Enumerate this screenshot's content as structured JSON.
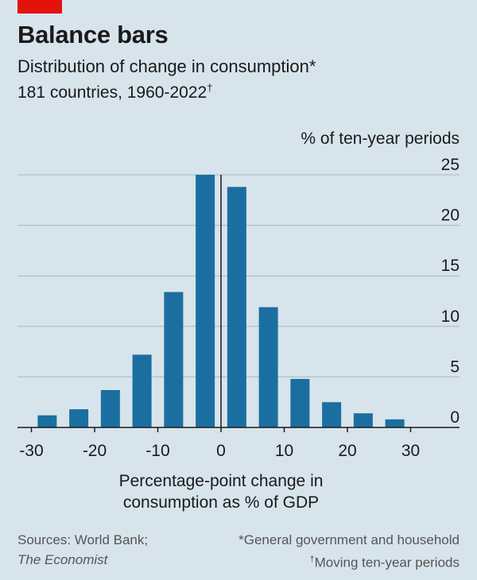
{
  "header": {
    "title": "Balance bars",
    "subtitle": "Distribution of change in consumption*",
    "subtitle2_text": "181 countries, 1960-2022",
    "subtitle2_mark": "†"
  },
  "colors": {
    "bar": "#1b6fa0",
    "brand_red": "#e3120b",
    "background": "#d7e4ec"
  },
  "chart_data": {
    "type": "bar",
    "ylabel": "% of ten-year periods",
    "xlabel": [
      "Percentage-point change in",
      "consumption as % of GDP"
    ],
    "xlim": [
      -33,
      33
    ],
    "ylim": [
      0,
      25
    ],
    "yticks": [
      0,
      5,
      10,
      15,
      20,
      25
    ],
    "xticks": [
      -30,
      -20,
      -10,
      0,
      10,
      20,
      30
    ],
    "bins": [
      {
        "x": -27.5,
        "value": 1.2
      },
      {
        "x": -22.5,
        "value": 1.8
      },
      {
        "x": -17.5,
        "value": 3.7
      },
      {
        "x": -12.5,
        "value": 7.2
      },
      {
        "x": -7.5,
        "value": 13.4
      },
      {
        "x": -2.5,
        "value": 25.0
      },
      {
        "x": 2.5,
        "value": 23.8
      },
      {
        "x": 7.5,
        "value": 11.9
      },
      {
        "x": 12.5,
        "value": 4.8
      },
      {
        "x": 17.5,
        "value": 2.5
      },
      {
        "x": 22.5,
        "value": 1.4
      },
      {
        "x": 27.5,
        "value": 0.8
      }
    ]
  },
  "footer": {
    "sources_line1": "Sources: World Bank;",
    "sources_line2": "The Economist",
    "note1": "*General government and household",
    "note2_mark": "†",
    "note2": "Moving ten-year periods"
  }
}
